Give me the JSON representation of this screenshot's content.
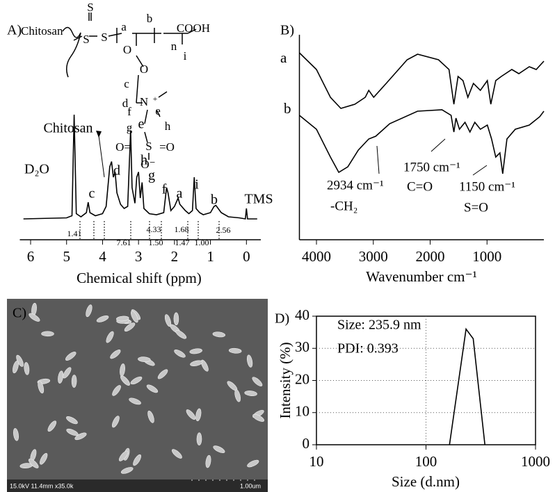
{
  "chart_data": [
    {
      "panel": "A)",
      "type": "line",
      "x_label": "Chemical shift (ppm)",
      "color": "#000000",
      "x": [
        6.2,
        5.0,
        4.85,
        4.79,
        4.73,
        4.6,
        4.45,
        4.4,
        4.35,
        4.2,
        4.0,
        3.9,
        3.8,
        3.75,
        3.7,
        3.65,
        3.6,
        3.5,
        3.4,
        3.3,
        3.22,
        3.18,
        3.1,
        3.05,
        3.0,
        2.95,
        2.9,
        2.85,
        2.7,
        2.5,
        2.3,
        2.22,
        2.18,
        2.1,
        2.0,
        1.9,
        1.85,
        1.7,
        1.6,
        1.5,
        1.45,
        1.4,
        1.3,
        1.2,
        1.0,
        0.9,
        0.85,
        0.7,
        0.5,
        0.2,
        0.03,
        0.0,
        -0.03,
        -0.3
      ],
      "values": [
        0,
        1,
        3,
        100,
        5,
        2,
        6,
        16,
        6,
        3,
        5,
        12,
        50,
        55,
        40,
        45,
        25,
        14,
        10,
        12,
        85,
        30,
        15,
        40,
        45,
        20,
        35,
        10,
        5,
        4,
        6,
        30,
        25,
        8,
        12,
        20,
        14,
        8,
        5,
        8,
        40,
        10,
        6,
        4,
        6,
        12,
        13,
        6,
        2,
        1,
        0,
        10,
        0,
        0
      ],
      "xlim": [
        6.3,
        -0.4
      ],
      "ylim": [
        0,
        100
      ],
      "xticks": [
        6,
        5,
        4,
        3,
        2,
        1,
        0
      ],
      "peak_labels": [
        "D₂O",
        "c",
        "Chitosan",
        "d",
        "e",
        "h",
        "g",
        "f",
        "a",
        "i",
        "b",
        "TMS"
      ],
      "integrals": [
        "1.41",
        "7.61",
        "4.33",
        "1.50",
        "1.47",
        "1.68",
        "1.00",
        "2.56"
      ],
      "structure_labels": [
        "Chitosan",
        "S",
        "S",
        "S",
        "a",
        "b",
        "COOH",
        "n",
        "i",
        "O",
        "O",
        "c",
        "d",
        "N",
        "+",
        "e",
        "f",
        "g",
        "h",
        "O=",
        "S",
        "=O",
        "O⁻"
      ]
    },
    {
      "panel": "B)",
      "type": "line",
      "x_label": "Wavenumber cm⁻¹",
      "xlim": [
        4300,
        0
      ],
      "ylim": [
        0,
        100
      ],
      "xticks": [
        4000,
        3000,
        2000,
        1000
      ],
      "series": [
        {
          "name": "a",
          "color": "#000000",
          "x": [
            4300,
            4000,
            3755,
            3571,
            3325,
            3141,
            3080,
            2994,
            2773,
            2405,
            2221,
            1853,
            1669,
            1583,
            1509,
            1423,
            1337,
            1239,
            1117,
            994,
            933,
            847,
            749,
            564,
            441,
            257,
            135,
            0
          ],
          "values": [
            92,
            80,
            60,
            52,
            55,
            60,
            65,
            60,
            70,
            87,
            91,
            87,
            80,
            55,
            75,
            72,
            60,
            70,
            65,
            72,
            55,
            72,
            75,
            80,
            77,
            82,
            80,
            86
          ]
        },
        {
          "name": "b",
          "color": "#000000",
          "x": [
            4300,
            4000,
            3755,
            3608,
            3449,
            3264,
            3080,
            2957,
            2712,
            2221,
            1792,
            1632,
            1583,
            1546,
            1485,
            1387,
            1301,
            1215,
            1117,
            994,
            920,
            847,
            773,
            724,
            650,
            503,
            257,
            73,
            0
          ],
          "values": [
            47,
            37,
            17,
            6,
            10,
            22,
            30,
            32,
            41,
            50,
            51,
            47,
            35,
            45,
            37,
            42,
            35,
            42,
            37,
            40,
            30,
            17,
            20,
            5,
            30,
            37,
            40,
            46,
            50
          ]
        }
      ],
      "annotations": [
        "2934 cm⁻¹",
        "-CH₂",
        "1750 cm⁻¹",
        "C=O",
        "1150 cm⁻¹",
        "S=O"
      ]
    },
    {
      "panel": "D)",
      "type": "line",
      "x_label": "Size (d.nm)",
      "y_label": "Intensity (%)",
      "log_x": true,
      "grid": true,
      "color": "#000000",
      "x": [
        164,
        232,
        270,
        345
      ],
      "values": [
        0,
        36,
        33,
        0
      ],
      "xlim": [
        10,
        1000
      ],
      "ylim": [
        0,
        40
      ],
      "xticks": [
        10,
        100,
        1000
      ],
      "yticks": [
        0,
        10,
        20,
        30,
        40
      ],
      "annotations": [
        "Size: 235.9 nm",
        "PDI: 0.393"
      ]
    }
  ],
  "sem_image": {
    "panel": "C)",
    "caption": "15.0kV 11.4mm x35.0k",
    "scale_bar": "1.00um"
  }
}
